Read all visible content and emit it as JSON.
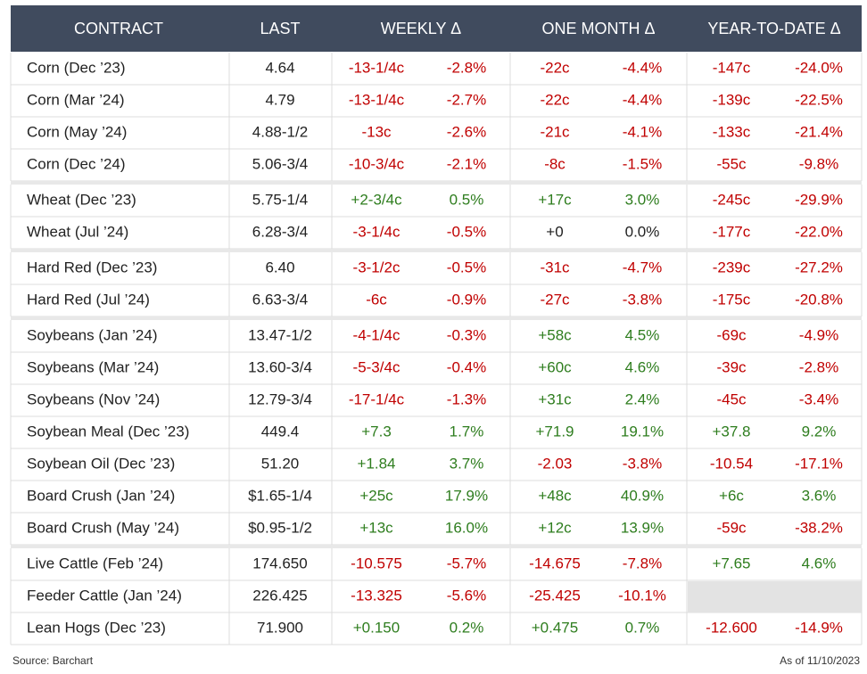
{
  "table": {
    "columns": [
      "CONTRACT",
      "LAST",
      "WEEKLY Δ",
      "ONE MONTH Δ",
      "YEAR-TO-DATE Δ"
    ],
    "groups": [
      [
        [
          "Corn (Dec ’23)",
          "4.64",
          "-13-1/4c",
          "-2.8%",
          "-22c",
          "-4.4%",
          "-147c",
          "-24.0%"
        ],
        [
          "Corn (Mar ’24)",
          "4.79",
          "-13-1/4c",
          "-2.7%",
          "-22c",
          "-4.4%",
          "-139c",
          "-22.5%"
        ],
        [
          "Corn (May ’24)",
          "4.88-1/2",
          "-13c",
          "-2.6%",
          "-21c",
          "-4.1%",
          "-133c",
          "-21.4%"
        ],
        [
          "Corn (Dec ’24)",
          "5.06-3/4",
          "-10-3/4c",
          "-2.1%",
          "-8c",
          "-1.5%",
          "-55c",
          "-9.8%"
        ]
      ],
      [
        [
          "Wheat (Dec ’23)",
          "5.75-1/4",
          "+2-3/4c",
          "0.5%",
          "+17c",
          "3.0%",
          "-245c",
          "-29.9%"
        ],
        [
          "Wheat (Jul ’24)",
          "6.28-3/4",
          "-3-1/4c",
          "-0.5%",
          "+0",
          "0.0%",
          "-177c",
          "-22.0%"
        ]
      ],
      [
        [
          "Hard Red (Dec ’23)",
          "6.40",
          "-3-1/2c",
          "-0.5%",
          "-31c",
          "-4.7%",
          "-239c",
          "-27.2%"
        ],
        [
          "Hard Red (Jul ’24)",
          "6.63-3/4",
          "-6c",
          "-0.9%",
          "-27c",
          "-3.8%",
          "-175c",
          "-20.8%"
        ]
      ],
      [
        [
          "Soybeans (Jan ’24)",
          "13.47-1/2",
          "-4-1/4c",
          "-0.3%",
          "+58c",
          "4.5%",
          "-69c",
          "-4.9%"
        ],
        [
          "Soybeans (Mar ’24)",
          "13.60-3/4",
          "-5-3/4c",
          "-0.4%",
          "+60c",
          "4.6%",
          "-39c",
          "-2.8%"
        ],
        [
          "Soybeans (Nov ’24)",
          "12.79-3/4",
          "-17-1/4c",
          "-1.3%",
          "+31c",
          "2.4%",
          "-45c",
          "-3.4%"
        ],
        [
          "Soybean Meal (Dec ’23)",
          "449.4",
          "+7.3",
          "1.7%",
          "+71.9",
          "19.1%",
          "+37.8",
          "9.2%"
        ],
        [
          "Soybean Oil (Dec ’23)",
          "51.20",
          "+1.84",
          "3.7%",
          "-2.03",
          "-3.8%",
          "-10.54",
          "-17.1%"
        ],
        [
          "Board Crush (Jan ’24)",
          "$1.65-1/4",
          "+25c",
          "17.9%",
          "+48c",
          "40.9%",
          "+6c",
          "3.6%"
        ],
        [
          "Board Crush (May ’24)",
          "$0.95-1/2",
          "+13c",
          "16.0%",
          "+12c",
          "13.9%",
          "-59c",
          "-38.2%"
        ]
      ],
      [
        [
          "Live Cattle (Feb ’24)",
          "174.650",
          "-10.575",
          "-5.7%",
          "-14.675",
          "-7.8%",
          "+7.65",
          "4.6%"
        ],
        [
          "Feeder Cattle (Jan ’24)",
          "226.425",
          "-13.325",
          "-5.6%",
          "-25.425",
          "-10.1%",
          null,
          null
        ],
        [
          "Lean Hogs (Dec ’23)",
          "71.900",
          "+0.150",
          "0.2%",
          "+0.475",
          "0.7%",
          "-12.600",
          "-14.9%"
        ]
      ]
    ]
  },
  "footer": {
    "source": "Source: Barchart",
    "date": "As of 11/10/2023"
  }
}
